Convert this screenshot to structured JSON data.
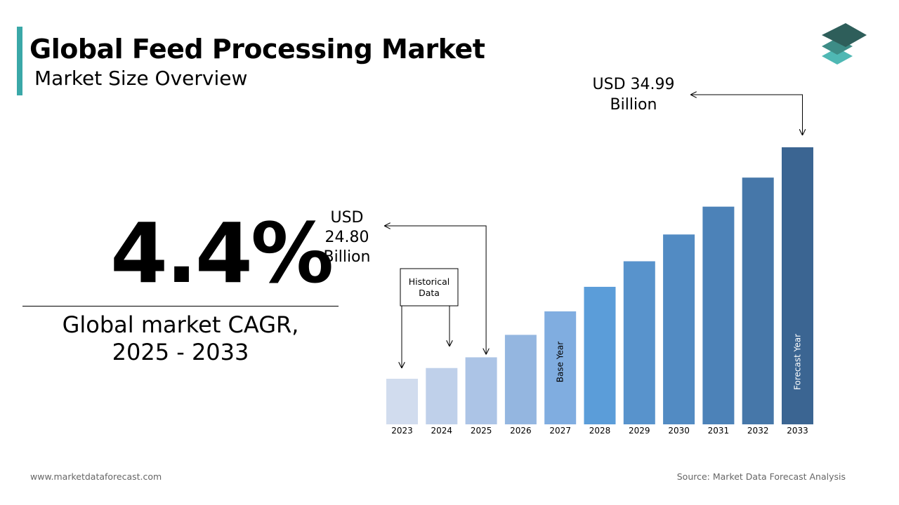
{
  "header": {
    "title": "Global Feed Processing Market",
    "subtitle": "Market Size Overview"
  },
  "cagr": {
    "value": "4.4%",
    "label_line1": "Global market CAGR,",
    "label_line2": "2025 - 2033"
  },
  "footer": {
    "website": "www.marketdataforecast.com",
    "source": "Source: Market Data Forecast Analysis"
  },
  "colors": {
    "accent": "#3aa8a8",
    "logo_top": "#2e5e5a",
    "logo_mid": "#3d8c86",
    "logo_bottom": "#4fb8b4"
  },
  "chart_data": {
    "type": "bar",
    "categories": [
      "2023",
      "2024",
      "2025",
      "2026",
      "2027",
      "2028",
      "2029",
      "2030",
      "2031",
      "2032",
      "2033"
    ],
    "values": [
      23.76,
      24.28,
      24.8,
      25.89,
      27.03,
      28.22,
      29.46,
      30.76,
      32.11,
      33.52,
      34.99
    ],
    "bar_colors": [
      "#d1dcee",
      "#bfd0ea",
      "#acc4e6",
      "#94b6e0",
      "#80ade0",
      "#5b9dd9",
      "#5893cc",
      "#528bc3",
      "#4c82b8",
      "#4677a9",
      "#3b6592"
    ],
    "callouts": [
      {
        "year": "2025",
        "line1": "USD",
        "line2": "24.80",
        "line3": "Billion"
      },
      {
        "year": "2033",
        "line1": "USD 34.99",
        "line2": "Billion"
      }
    ],
    "bar_labels": [
      {
        "year": "2027",
        "text": "Base Year"
      },
      {
        "year": "2033",
        "text": "Forecast Year"
      }
    ],
    "historical_box": {
      "line1": "Historical",
      "line2": "Data"
    }
  }
}
